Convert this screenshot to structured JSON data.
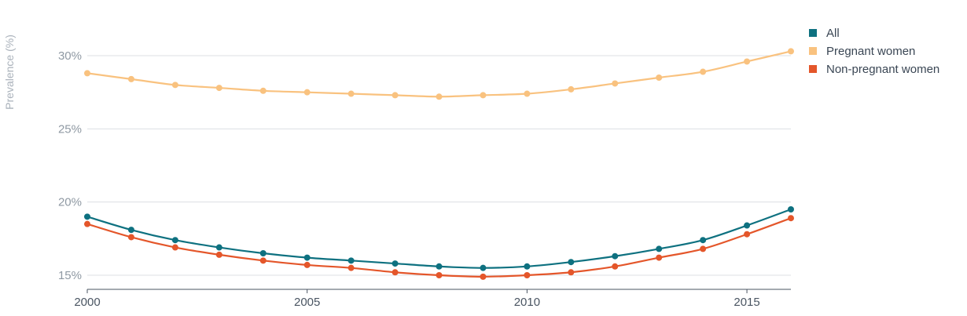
{
  "chart_data": {
    "type": "line",
    "title": "",
    "xlabel": "",
    "ylabel": "Prevalence (%)",
    "x": [
      2000,
      2001,
      2002,
      2003,
      2004,
      2005,
      2006,
      2007,
      2008,
      2009,
      2010,
      2011,
      2012,
      2013,
      2014,
      2015,
      2016
    ],
    "xlim": [
      2000,
      2016
    ],
    "ylim": [
      14,
      32
    ],
    "x_ticks": [
      2000,
      2005,
      2010,
      2015
    ],
    "x_tick_labels": [
      "2000",
      "2005",
      "2010",
      "2015"
    ],
    "y_ticks": [
      15,
      20,
      25,
      30
    ],
    "y_tick_labels": [
      "15%",
      "20%",
      "25%",
      "30%"
    ],
    "grid": "horizontal",
    "legend_position": "top-right",
    "series": [
      {
        "name": "All",
        "color": "#0e7180",
        "values": [
          19.0,
          18.1,
          17.4,
          16.9,
          16.5,
          16.2,
          16.0,
          15.8,
          15.6,
          15.5,
          15.6,
          15.9,
          16.3,
          16.8,
          17.4,
          18.4,
          19.5
        ]
      },
      {
        "name": "Pregnant women",
        "color": "#f9c27f",
        "values": [
          28.8,
          28.4,
          28.0,
          27.8,
          27.6,
          27.5,
          27.4,
          27.3,
          27.2,
          27.3,
          27.4,
          27.7,
          28.1,
          28.5,
          28.9,
          29.6,
          30.3
        ]
      },
      {
        "name": "Non-pregnant women",
        "color": "#e4562a",
        "values": [
          18.5,
          17.6,
          16.9,
          16.4,
          16.0,
          15.7,
          15.5,
          15.2,
          15.0,
          14.9,
          15.0,
          15.2,
          15.6,
          16.2,
          16.8,
          17.8,
          18.9
        ]
      }
    ]
  }
}
